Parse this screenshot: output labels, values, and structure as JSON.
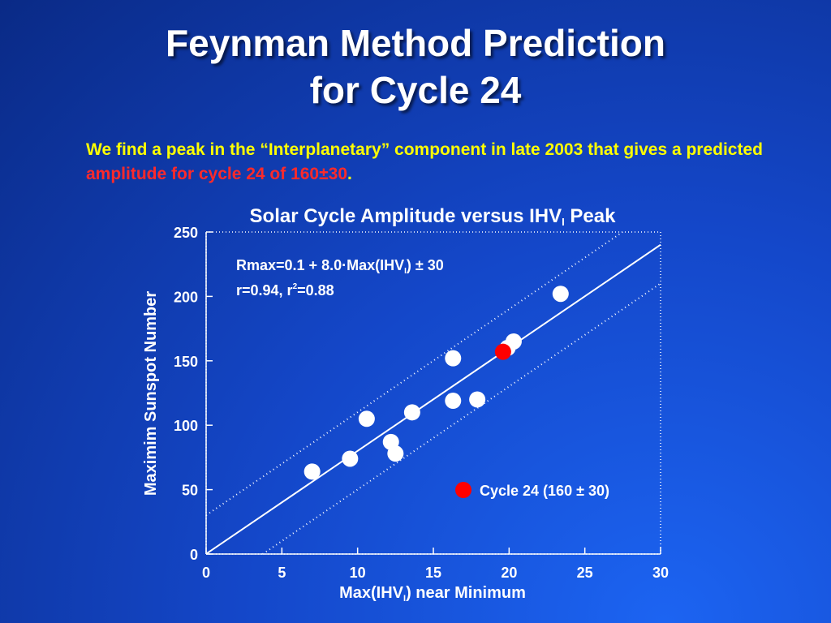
{
  "slide": {
    "title_line1": "Feynman Method Prediction",
    "title_line2": "for Cycle 24",
    "intro_text_before": "We find a peak in the “Interplanetary” component in late 2003 that gives a predicted ",
    "intro_highlight": "amplitude for cycle 24 of 160±30",
    "intro_text_after": "."
  },
  "colors": {
    "text_highlight_yellow": "#ffff00",
    "text_highlight_red": "#ff2a2a",
    "point_white": "#ffffff",
    "point_prediction": "#ff0000"
  },
  "chart_data": {
    "type": "scatter",
    "title_main": "Solar Cycle Amplitude versus IHV",
    "title_sub": "I",
    "title_end": " Peak",
    "xlabel_main": "Max(IHV",
    "xlabel_sub": "I",
    "xlabel_end": ") near Minimum",
    "ylabel": "Maximim Sunspot Number",
    "xlim": [
      0,
      30
    ],
    "ylim": [
      0,
      250
    ],
    "xticks": [
      0,
      5,
      10,
      15,
      20,
      25,
      30
    ],
    "yticks": [
      0,
      50,
      100,
      150,
      200,
      250
    ],
    "grid": false,
    "fit": {
      "intercept": 0.1,
      "slope": 8.0,
      "band": 30
    },
    "annotation_line1_main": "Rmax=0.1 + 8.0·Max(IHV",
    "annotation_line1_sub": "I",
    "annotation_line1_end": ") ± 30",
    "annotation_line2_main": "r=0.94, r",
    "annotation_line2_sup": "2",
    "annotation_line2_end": "=0.88",
    "legend_label": "Cycle 24 (160 ± 30)",
    "series": [
      {
        "x": [
          7.0,
          9.5,
          10.6,
          12.2,
          12.5,
          13.6,
          16.3,
          16.3,
          17.9,
          19.9,
          20.3,
          23.4
        ],
        "y": [
          64,
          74,
          105,
          87,
          78,
          110,
          119,
          152,
          120,
          160,
          165,
          202
        ]
      },
      {
        "name": "Cycle 24 (160 ± 30)",
        "x": [
          19.6
        ],
        "y": [
          157
        ]
      }
    ]
  }
}
